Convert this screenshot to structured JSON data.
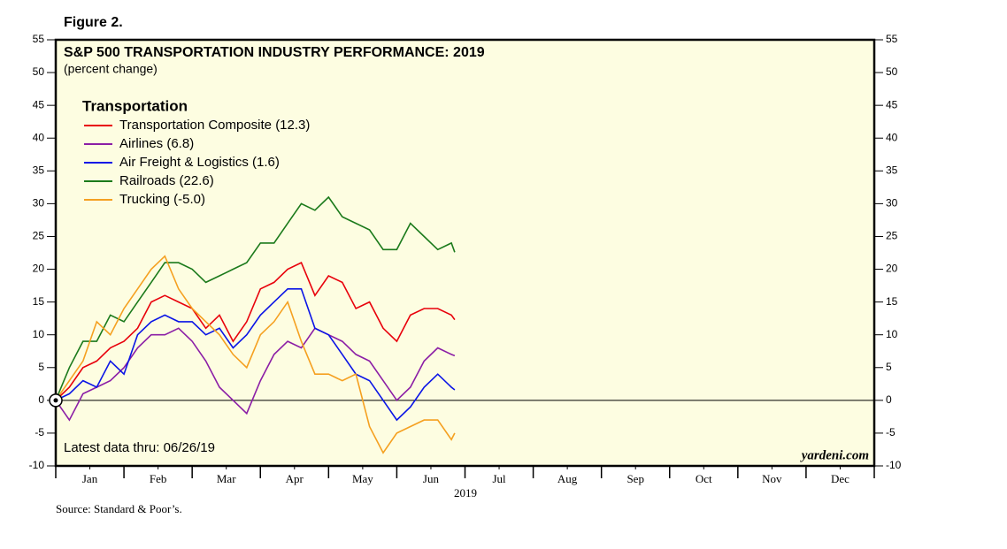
{
  "figure_label": "Figure 2.",
  "chart_data": {
    "type": "line",
    "title": "S&P 500 TRANSPORTATION INDUSTRY PERFORMANCE: 2019",
    "subtitle": "(percent change)",
    "legend_title": "Transportation",
    "annotation": "Latest data thru: 06/26/19",
    "watermark": "yardeni.com",
    "x_axis_label": "2019",
    "source": "Source: Standard & Poor’s.",
    "x": [
      0,
      0.2,
      0.4,
      0.6,
      0.8,
      1.0,
      1.2,
      1.4,
      1.6,
      1.8,
      2.0,
      2.2,
      2.4,
      2.6,
      2.8,
      3.0,
      3.2,
      3.4,
      3.6,
      3.8,
      4.0,
      4.2,
      4.4,
      4.6,
      4.8,
      5.0,
      5.2,
      5.4,
      5.6,
      5.8,
      5.85
    ],
    "series": [
      {
        "name": "Transportation Composite (12.3)",
        "color": "#e8000b",
        "values": [
          0,
          2,
          5,
          6,
          8,
          9,
          11,
          15,
          16,
          15,
          14,
          11,
          13,
          9,
          12,
          17,
          18,
          20,
          21,
          16,
          19,
          18,
          14,
          15,
          11,
          9,
          13,
          14,
          14,
          13,
          12.3
        ]
      },
      {
        "name": "Airlines (6.8)",
        "color": "#8b1ea6",
        "values": [
          0,
          -3,
          1,
          2,
          3,
          5,
          8,
          10,
          10,
          11,
          9,
          6,
          2,
          0,
          -2,
          3,
          7,
          9,
          8,
          11,
          10,
          9,
          7,
          6,
          3,
          0,
          2,
          6,
          8,
          7,
          6.8
        ]
      },
      {
        "name": "Air Freight & Logistics (1.6)",
        "color": "#0a14e6",
        "values": [
          0,
          1,
          3,
          2,
          6,
          4,
          10,
          12,
          13,
          12,
          12,
          10,
          11,
          8,
          10,
          13,
          15,
          17,
          17,
          11,
          10,
          7,
          4,
          3,
          0,
          -3,
          -1,
          2,
          4,
          2,
          1.6
        ]
      },
      {
        "name": "Railroads (22.6)",
        "color": "#1b7a1b",
        "values": [
          0,
          5,
          9,
          9,
          13,
          12,
          15,
          18,
          21,
          21,
          20,
          18,
          19,
          20,
          21,
          24,
          24,
          27,
          30,
          29,
          31,
          28,
          27,
          26,
          23,
          23,
          27,
          25,
          23,
          24,
          22.6
        ]
      },
      {
        "name": "Trucking (-5.0)",
        "color": "#f5a020",
        "values": [
          0,
          3,
          6,
          12,
          10,
          14,
          17,
          20,
          22,
          17,
          14,
          12,
          10,
          7,
          5,
          10,
          12,
          15,
          9,
          4,
          4,
          3,
          4,
          -4,
          -8,
          -5,
          -4,
          -3,
          -3,
          -6,
          -5.0
        ]
      }
    ],
    "xlim": [
      0,
      12
    ],
    "xticks": [
      {
        "value": 0.5,
        "label": "Jan"
      },
      {
        "value": 1.5,
        "label": "Feb"
      },
      {
        "value": 2.5,
        "label": "Mar"
      },
      {
        "value": 3.5,
        "label": "Apr"
      },
      {
        "value": 4.5,
        "label": "May"
      },
      {
        "value": 5.5,
        "label": "Jun"
      },
      {
        "value": 6.5,
        "label": "Jul"
      },
      {
        "value": 7.5,
        "label": "Aug"
      },
      {
        "value": 8.5,
        "label": "Sep"
      },
      {
        "value": 9.5,
        "label": "Oct"
      },
      {
        "value": 10.5,
        "label": "Nov"
      },
      {
        "value": 11.5,
        "label": "Dec"
      }
    ],
    "ylim": [
      -10,
      55
    ],
    "yticks": [
      -10,
      -5,
      0,
      5,
      10,
      15,
      20,
      25,
      30,
      35,
      40,
      45,
      50,
      55
    ]
  }
}
